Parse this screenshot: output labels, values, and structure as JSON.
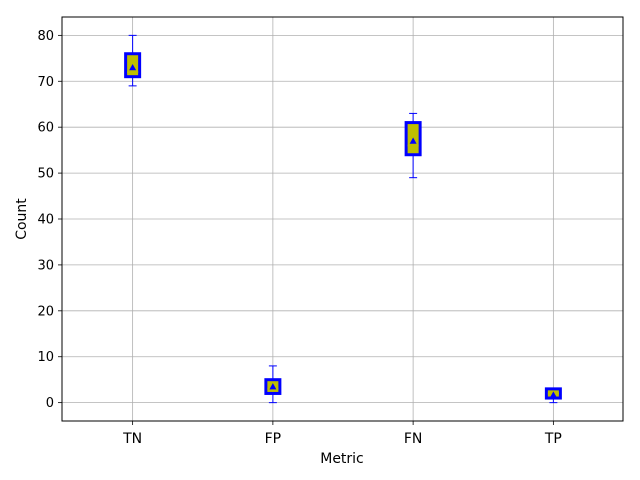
{
  "chart_data": {
    "type": "box",
    "title": "",
    "xlabel": "Metric",
    "ylabel": "Count",
    "categories": [
      "TN",
      "FP",
      "FN",
      "TP"
    ],
    "ylim": [
      -4,
      84
    ],
    "yticks": [
      0,
      10,
      20,
      30,
      40,
      50,
      60,
      70,
      80
    ],
    "grid": true,
    "boxes": [
      {
        "category": "TN",
        "whisker_low": 69,
        "q1": 71,
        "median": 72,
        "q3": 76,
        "whisker_high": 80,
        "mean": 73
      },
      {
        "category": "FP",
        "whisker_low": 0,
        "q1": 2,
        "median": 3,
        "q3": 5,
        "whisker_high": 8,
        "mean": 3.5
      },
      {
        "category": "FN",
        "whisker_low": 49,
        "q1": 54,
        "median": 56,
        "q3": 61,
        "whisker_high": 63,
        "mean": 57
      },
      {
        "category": "TP",
        "whisker_low": 0,
        "q1": 1,
        "median": 2,
        "q3": 3,
        "whisker_high": 3,
        "mean": 1.7
      }
    ],
    "colors": {
      "box_edge": "#0000ff",
      "box_fill": "#bfbf00",
      "median": "#bfbf00",
      "whisker": "#0000ff",
      "grid": "#b0b0b0"
    }
  }
}
